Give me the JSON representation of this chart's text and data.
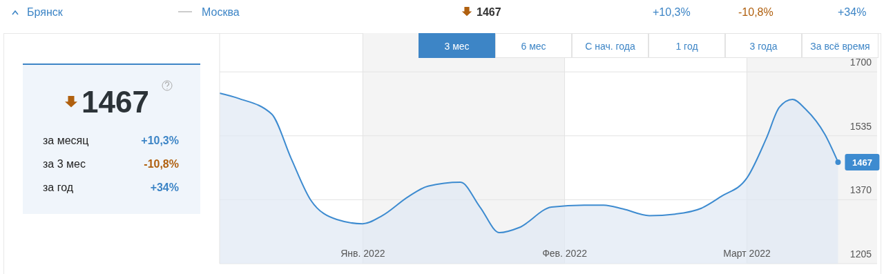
{
  "chart_data": [
    {
      "type": "other",
      "annotations": [
        "Брянск",
        "Москва",
        "1467",
        "+10,3%",
        "-10,8%",
        "+34%"
      ]
    },
    {
      "type": "other",
      "title": "1467",
      "annotations": [
        "за месяц",
        "+10,3%",
        "за 3 мес",
        "-10,8%",
        "за год",
        "+34%"
      ]
    },
    {
      "type": "other",
      "annotations": [
        "3 мес",
        "6 мес",
        "С нач. года",
        "1 год",
        "3 года",
        "За всё время"
      ]
    },
    {
      "type": "area",
      "color": "#3d8bd0",
      "x": [
        "2021-12-10",
        "2021-12-13",
        "2021-12-18",
        "2021-12-21",
        "2021-12-24",
        "2021-12-28",
        "2022-01-01",
        "2022-01-04",
        "2022-01-08",
        "2022-01-11",
        "2022-01-16",
        "2022-01-19",
        "2022-01-22",
        "2022-01-25",
        "2022-01-30",
        "2022-02-04",
        "2022-02-07",
        "2022-02-10",
        "2022-02-14",
        "2022-02-18",
        "2022-02-22",
        "2022-02-25",
        "2022-03-01",
        "2022-03-04",
        "2022-03-06",
        "2022-03-08",
        "2022-03-10",
        "2022-03-13",
        "2022-03-15"
      ],
      "values": [
        1645,
        1631,
        1591,
        1476,
        1369,
        1319,
        1308,
        1329,
        1378,
        1405,
        1415,
        1351,
        1285,
        1298,
        1351,
        1356,
        1356,
        1346,
        1329,
        1333,
        1348,
        1378,
        1426,
        1529,
        1609,
        1629,
        1604,
        1538,
        1467
      ],
      "xlim": [
        "2021-12-10",
        "2022-03-21"
      ],
      "xticks": [
        {
          "value": "2022-01-01",
          "label": "Янв. 2022"
        },
        {
          "value": "2022-02-01",
          "label": "Фев. 2022"
        },
        {
          "value": "2022-03-01",
          "label": "Март 2022"
        }
      ],
      "ylim": [
        1205,
        1800
      ],
      "yticks": [
        1205,
        1370,
        1535,
        1700
      ],
      "grid": true,
      "bands": [
        {
          "axis": "x",
          "from": "2022-01-01",
          "to": "2022-02-01",
          "color": "#f4f4f4"
        },
        {
          "axis": "x",
          "from": "2022-03-01",
          "to": "2022-03-21",
          "color": "#f4f4f4"
        }
      ],
      "annotations": [
        {
          "text": "1467",
          "x": "2022-03-15",
          "y": 1467
        }
      ]
    }
  ]
}
